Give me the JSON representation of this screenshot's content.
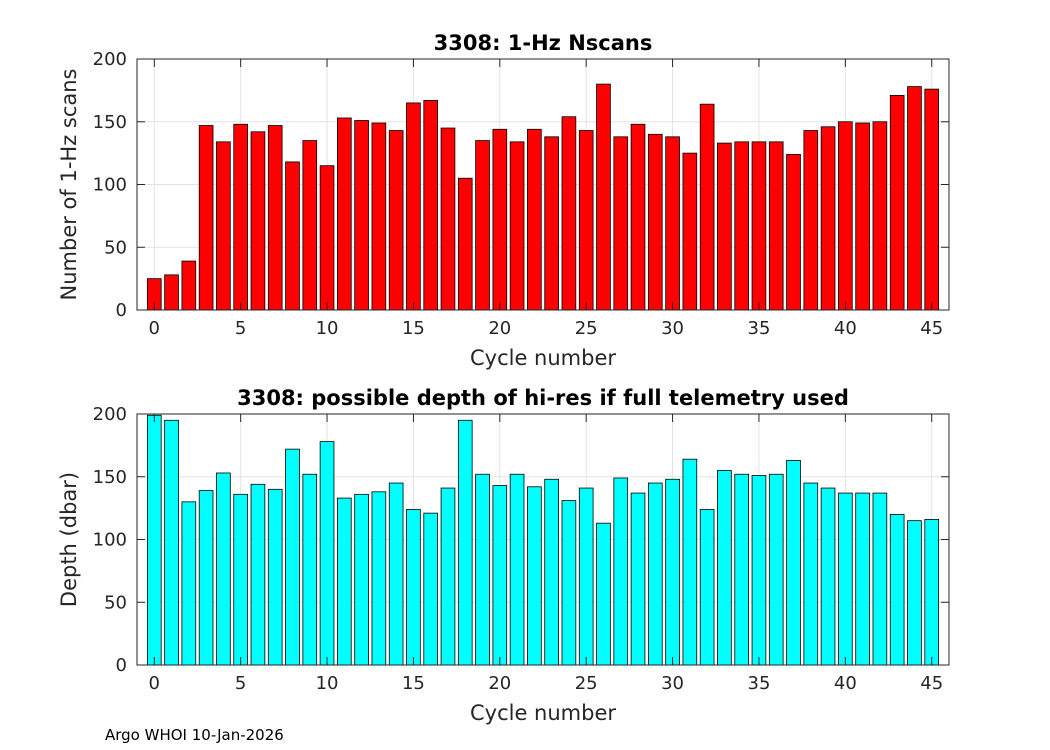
{
  "footer": "Argo WHOI 10-Jan-2026",
  "chart_data": [
    {
      "type": "bar",
      "title": "3308: 1-Hz Nscans",
      "xlabel": "Cycle number",
      "ylabel": "Number of 1-Hz scans",
      "color": "#ff0000",
      "xlim": [
        -1,
        46
      ],
      "ylim": [
        0,
        200
      ],
      "xticks": [
        0,
        5,
        10,
        15,
        20,
        25,
        30,
        35,
        40,
        45
      ],
      "yticks": [
        0,
        50,
        100,
        150,
        200
      ],
      "grid": true,
      "x": [
        0,
        1,
        2,
        3,
        4,
        5,
        6,
        7,
        8,
        9,
        10,
        11,
        12,
        13,
        14,
        15,
        16,
        17,
        18,
        19,
        20,
        21,
        22,
        23,
        24,
        25,
        26,
        27,
        28,
        29,
        30,
        31,
        32,
        33,
        34,
        35,
        36,
        37,
        38,
        39,
        40,
        41,
        42,
        43,
        44,
        45
      ],
      "values": [
        25,
        28,
        39,
        147,
        134,
        148,
        142,
        147,
        118,
        135,
        115,
        153,
        151,
        149,
        143,
        165,
        167,
        145,
        105,
        135,
        144,
        134,
        144,
        138,
        154,
        143,
        180,
        138,
        148,
        140,
        138,
        125,
        164,
        133,
        134,
        134,
        134,
        124,
        143,
        146,
        150,
        149,
        150,
        171,
        178,
        176
      ]
    },
    {
      "type": "bar",
      "title": "3308: possible depth of hi-res if full telemetry used",
      "xlabel": "Cycle number",
      "ylabel": "Depth (dbar)",
      "color": "#00ffff",
      "xlim": [
        -1,
        46
      ],
      "ylim": [
        0,
        200
      ],
      "xticks": [
        0,
        5,
        10,
        15,
        20,
        25,
        30,
        35,
        40,
        45
      ],
      "yticks": [
        0,
        50,
        100,
        150,
        200
      ],
      "grid": true,
      "x": [
        0,
        1,
        2,
        3,
        4,
        5,
        6,
        7,
        8,
        9,
        10,
        11,
        12,
        13,
        14,
        15,
        16,
        17,
        18,
        19,
        20,
        21,
        22,
        23,
        24,
        25,
        26,
        27,
        28,
        29,
        30,
        31,
        32,
        33,
        34,
        35,
        36,
        37,
        38,
        39,
        40,
        41,
        42,
        43,
        44,
        45
      ],
      "values": [
        199,
        195,
        130,
        139,
        153,
        136,
        144,
        140,
        172,
        152,
        178,
        133,
        136,
        138,
        145,
        124,
        121,
        141,
        195,
        152,
        143,
        152,
        142,
        148,
        131,
        141,
        113,
        149,
        137,
        145,
        148,
        164,
        124,
        155,
        152,
        151,
        152,
        163,
        145,
        141,
        137,
        137,
        137,
        120,
        115,
        116
      ]
    }
  ]
}
